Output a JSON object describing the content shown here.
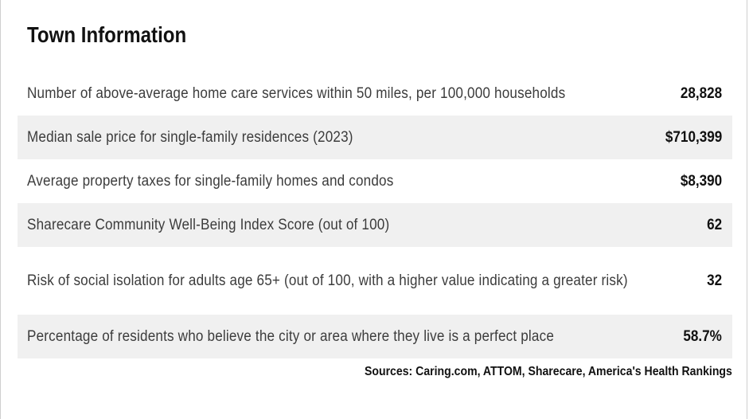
{
  "title": "Town Information",
  "rows": [
    {
      "label": "Number of above-average home care services within 50 miles, per 100,000 households",
      "value": "28,828"
    },
    {
      "label": "Median sale price for single-family residences (2023)",
      "value": "$710,399"
    },
    {
      "label": "Average property taxes for single-family homes and condos",
      "value": "$8,390"
    },
    {
      "label": "Sharecare Community Well-Being Index Score (out of 100)",
      "value": "62"
    },
    {
      "label": "Risk of social isolation for adults age 65+ (out of 100, with a higher value indicating a greater risk)",
      "value": "32"
    },
    {
      "label": "Percentage of residents who believe the city or area where they live is a perfect place",
      "value": "58.7%"
    }
  ],
  "sources": "Sources: Caring.com, ATTOM, Sharecare, America's Health Rankings",
  "colors": {
    "stripe": "#f0f0f0",
    "label_text": "#3c3c3c",
    "value_text": "#111111"
  }
}
